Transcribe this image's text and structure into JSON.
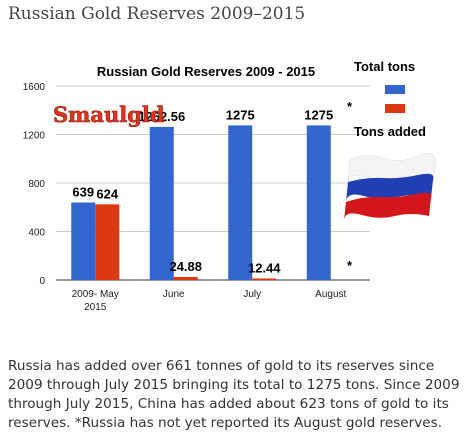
{
  "page_title": "Russian Gold Reserves 2009–2015",
  "caption": "Russia has added over 661 tonnes of gold to its reserves since 2009 through July 2015 bringing its total to 1275 tons. Since 2009 through July 2015, China has added about 623 tons of gold to its reserves. *Russia has not yet reported its August gold reserves.",
  "logo_text": "Smaulgld",
  "colors": {
    "total": "#3366CC",
    "added": "#DC3912"
  },
  "icons": {
    "flag": "russia-flag-icon",
    "logo": "smaulgld-logo"
  },
  "chart_data": {
    "type": "bar",
    "title": "Russian Gold Reserves 2009 - 2015",
    "categories": [
      "2009- May\n2015",
      "June",
      "July",
      "August"
    ],
    "series": [
      {
        "name": "Total tons",
        "values": [
          639,
          1262.56,
          1275,
          1275
        ],
        "labels": [
          "639",
          "1262.56",
          "1275",
          "1275"
        ]
      },
      {
        "name": "Tons added",
        "values": [
          624,
          24.88,
          12.44,
          null
        ],
        "labels": [
          "624",
          "24.88",
          "12.44",
          "*"
        ]
      }
    ],
    "annotations": [
      "*",
      "*"
    ],
    "yticks": [
      0,
      400,
      800,
      1200,
      1600
    ],
    "ylim": [
      0,
      1600
    ],
    "grid": true,
    "legend": "right"
  }
}
